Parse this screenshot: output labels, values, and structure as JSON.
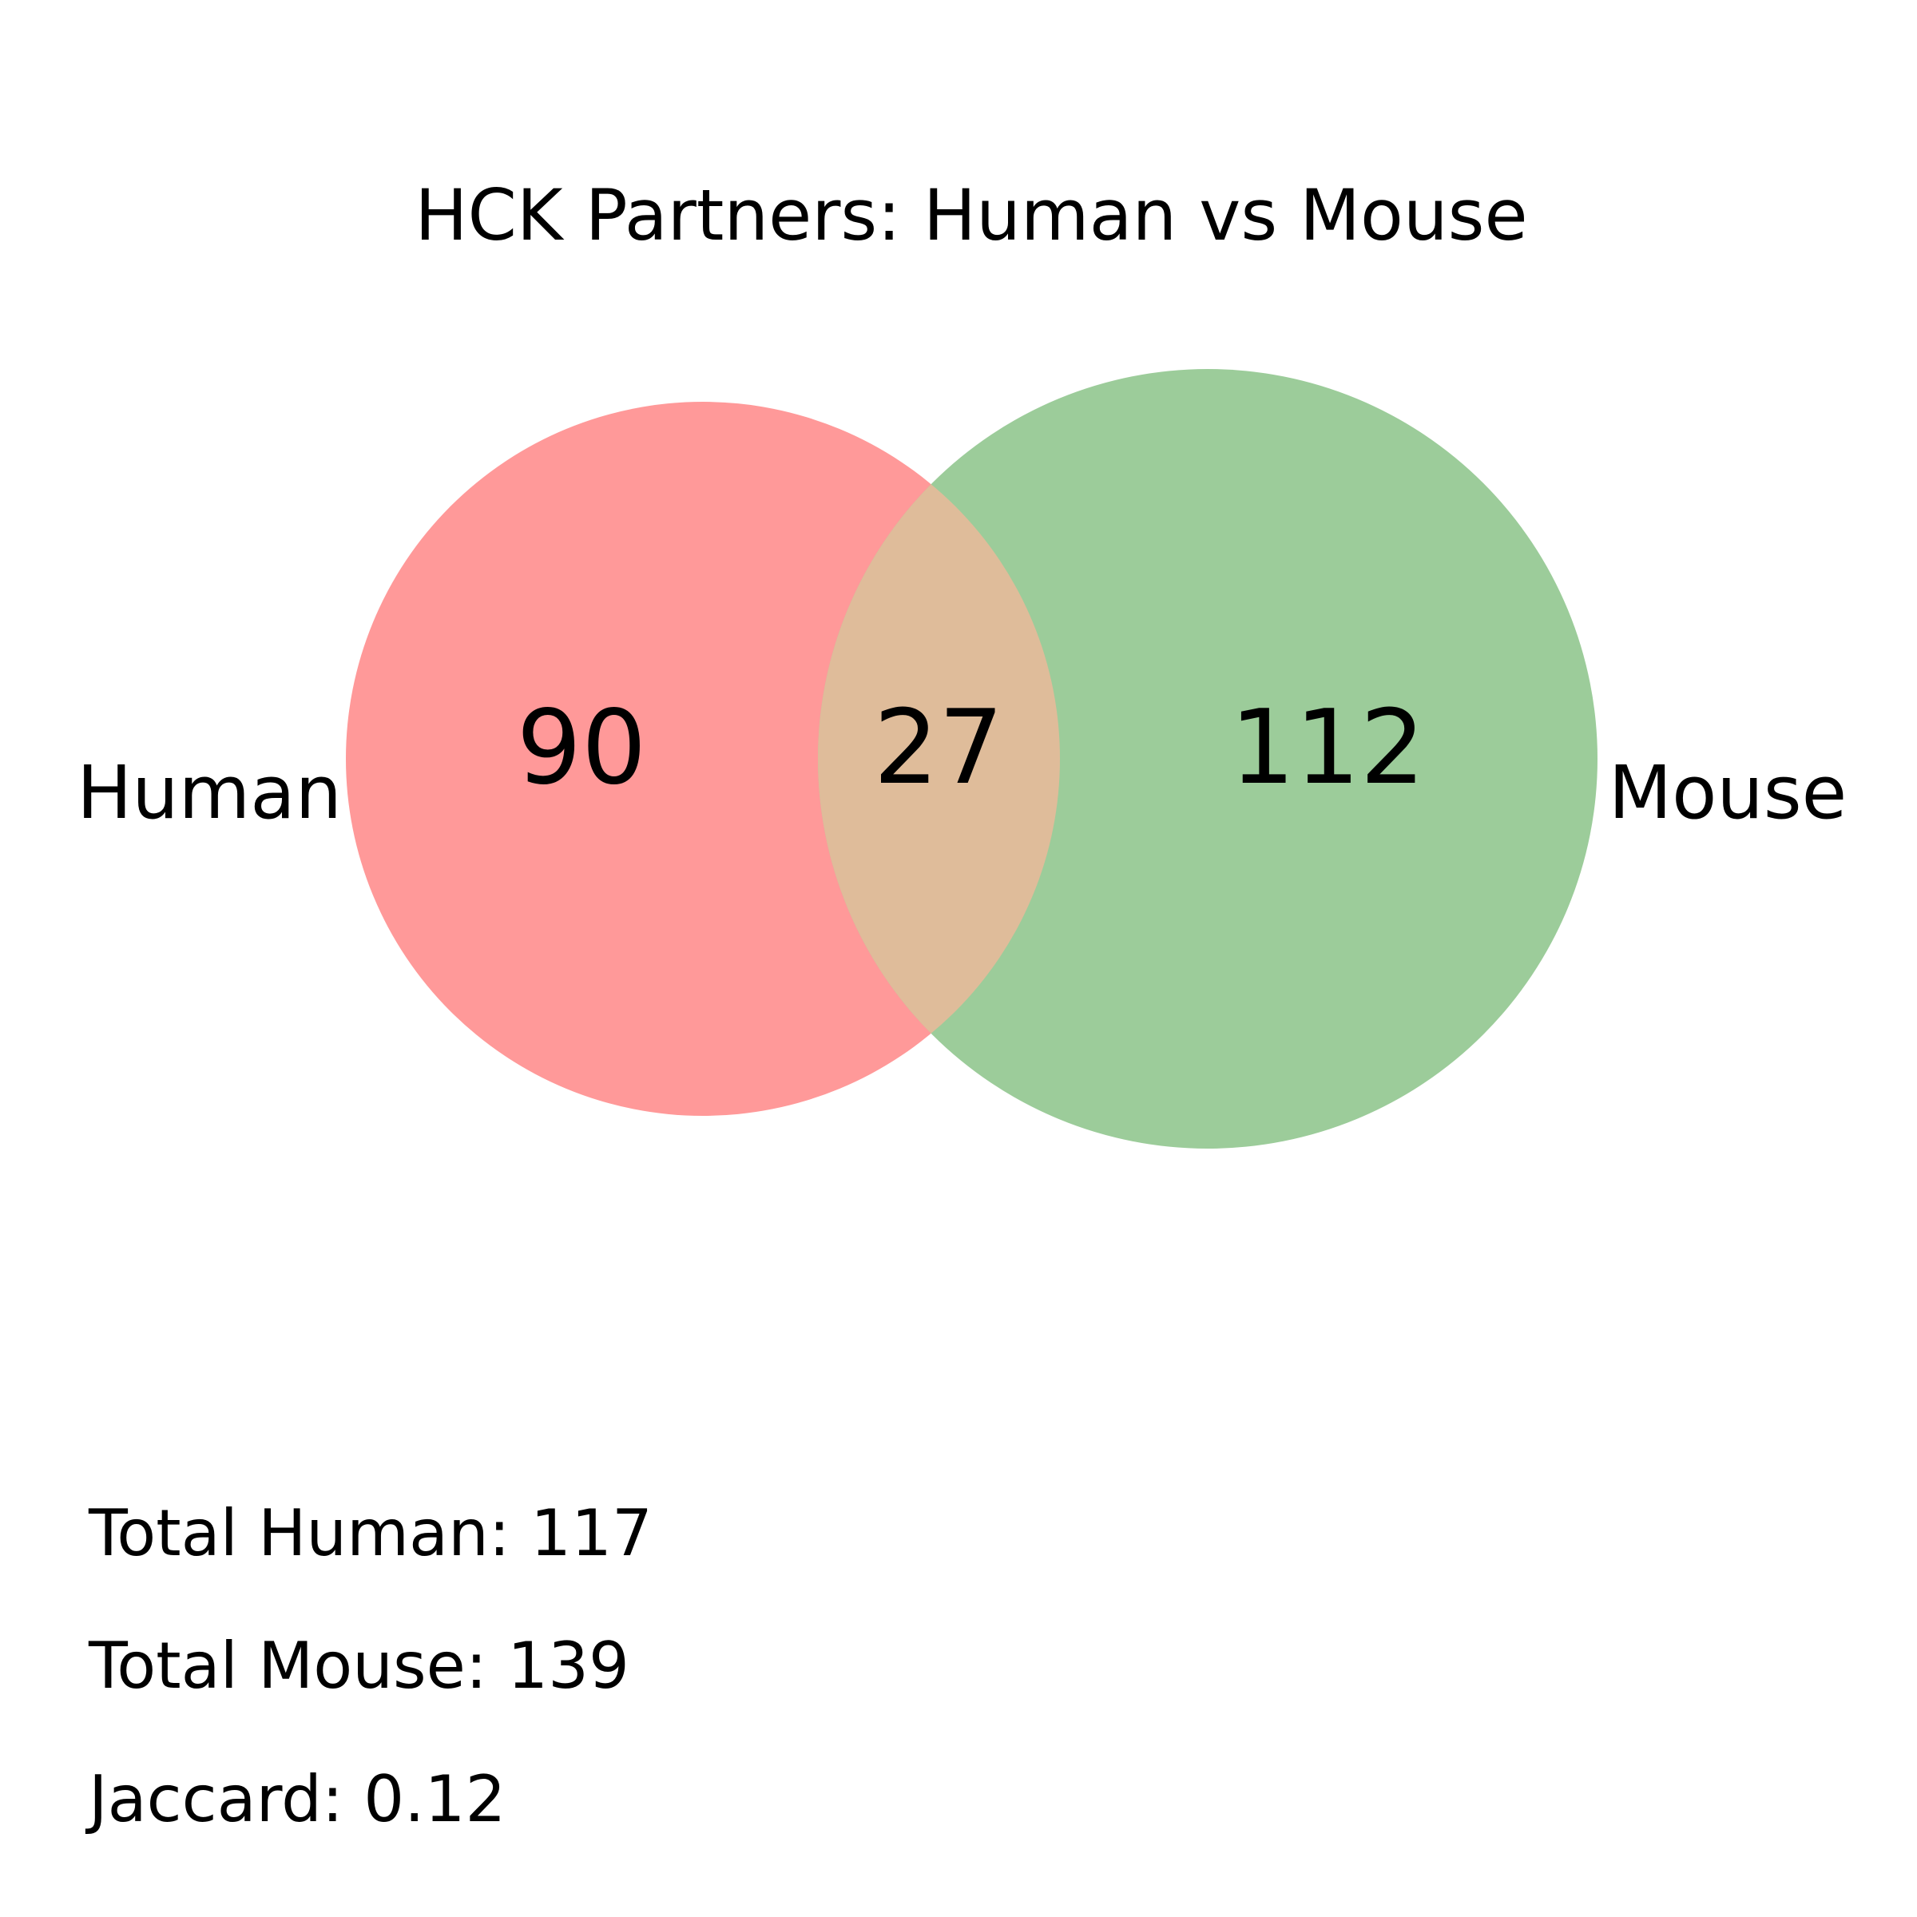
{
  "title": "HCK Partners: Human vs Mouse",
  "sets": [
    {
      "name": "Human",
      "only_count": "90",
      "total": 117,
      "color": "#ff9999"
    },
    {
      "name": "Mouse",
      "only_count": "112",
      "total": 139,
      "color": "#9ccc9a"
    }
  ],
  "intersection": {
    "count": "27",
    "color": "#dfbc9a"
  },
  "stats": {
    "total_human": "Total Human: 117",
    "total_mouse": "Total Mouse: 139",
    "jaccard": "Jaccard: 0.12"
  }
}
